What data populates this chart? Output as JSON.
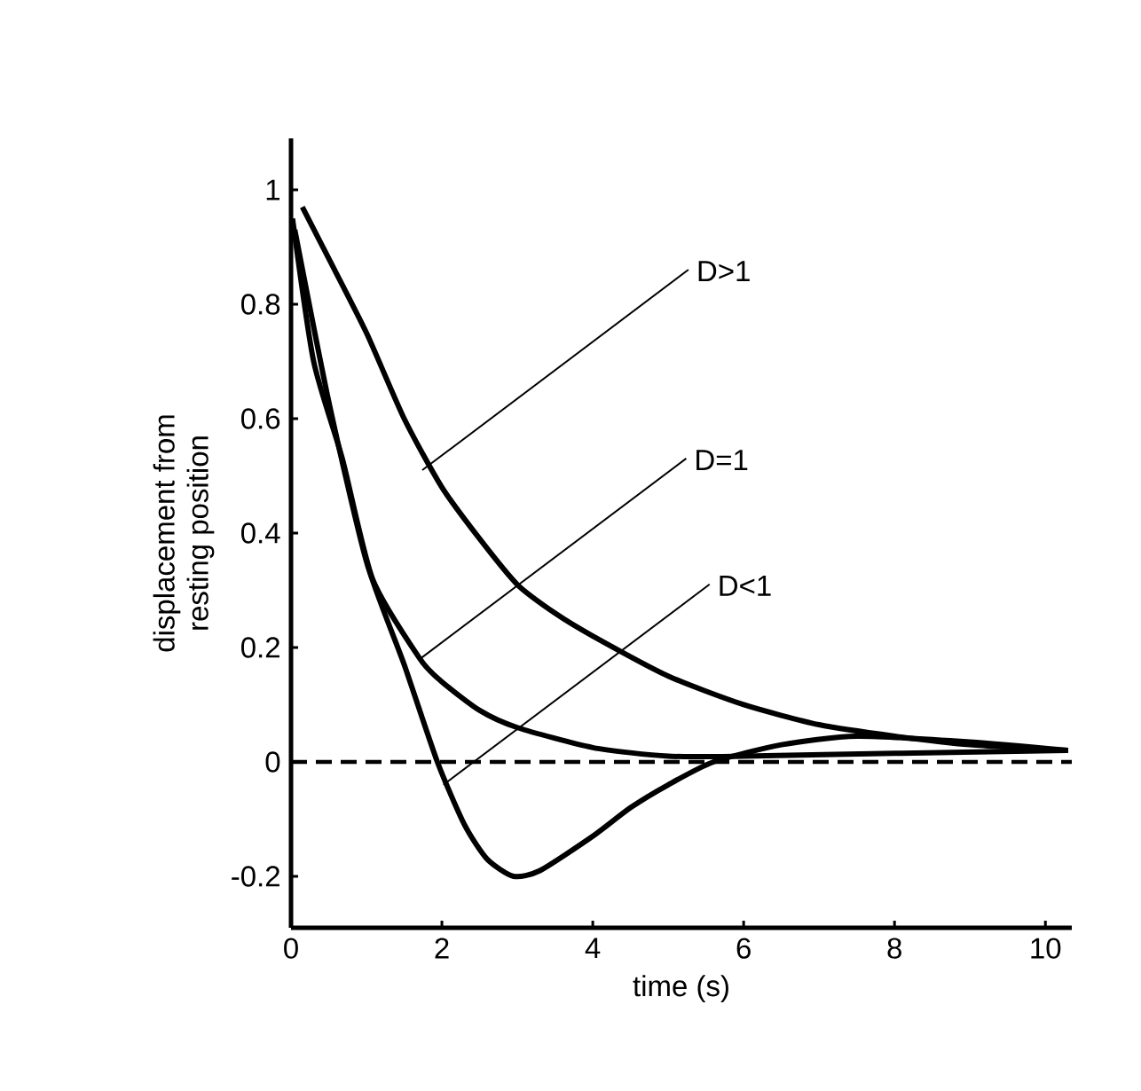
{
  "chart_data": {
    "type": "line",
    "xlabel": "time (s)",
    "ylabel": "displacement from\nresting position",
    "xlim": [
      0,
      10.35
    ],
    "ylim": [
      -0.29,
      1.09
    ],
    "xticks": [
      0,
      2,
      4,
      6,
      8,
      10
    ],
    "yticks": [
      -0.2,
      0,
      0.2,
      0.4,
      0.6,
      0.8,
      1
    ],
    "line_style": "solid",
    "series": [
      {
        "color": "#000000",
        "x": [
          0.15,
          0.5,
          1,
          1.5,
          2,
          2.5,
          3,
          3.5,
          4,
          5,
          6,
          7,
          8,
          9,
          10.3
        ],
        "values": [
          0.97,
          0.88,
          0.75,
          0.6,
          0.48,
          0.39,
          0.31,
          0.26,
          0.22,
          0.15,
          0.1,
          0.065,
          0.045,
          0.03,
          0.02
        ]
      },
      {
        "color": "#000000",
        "x": [
          0.02,
          0.3,
          0.68,
          1.08,
          1.71,
          2,
          2.5,
          3,
          4,
          5,
          6,
          8,
          10.3
        ],
        "values": [
          0.95,
          0.7,
          0.53,
          0.32,
          0.18,
          0.14,
          0.09,
          0.06,
          0.025,
          0.01,
          0.01,
          0.015,
          0.02
        ]
      },
      {
        "color": "#000000",
        "x": [
          0.05,
          0.5,
          1,
          1.5,
          1.94,
          2.3,
          2.6,
          2.95,
          3.3,
          4,
          4.5,
          5,
          5.6,
          6.5,
          7.5,
          9,
          10.3
        ],
        "values": [
          0.93,
          0.63,
          0.35,
          0.17,
          0,
          -0.11,
          -0.17,
          -0.2,
          -0.19,
          -0.13,
          -0.08,
          -0.04,
          0,
          0.03,
          0.045,
          0.035,
          0.02
        ]
      }
    ],
    "ref_lines": [
      {
        "axis": "y",
        "value": 0,
        "line_style": "dashed"
      }
    ],
    "annotations": [
      {
        "text": "D>1",
        "x": 1.74,
        "y": 0.51
      },
      {
        "text": "D=1",
        "x": 1.71,
        "y": 0.18
      },
      {
        "text": "D<1",
        "x": 2.02,
        "y": -0.04
      }
    ]
  }
}
